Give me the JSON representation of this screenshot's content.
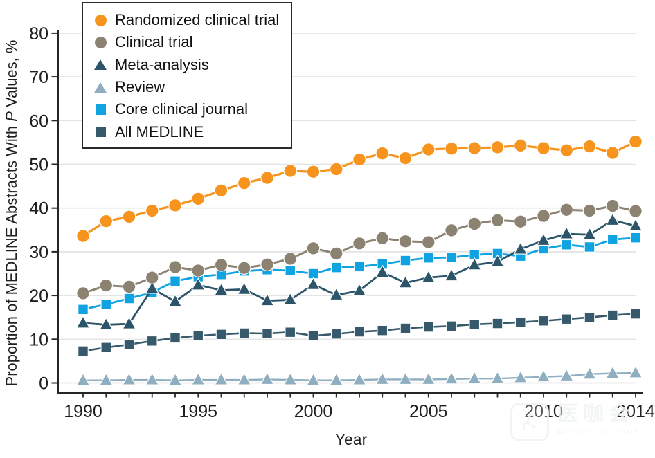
{
  "watermark": {
    "brand": "医咖会",
    "sub": "MEDIECOGROUP.COM"
  },
  "chart_data": {
    "type": "line",
    "title": "",
    "xlabel": "Year",
    "ylabel_prefix": "Proportion of MEDLINE Abstracts With ",
    "ylabel_italic": "P",
    "ylabel_suffix": " Values, %",
    "x": [
      1990,
      1991,
      1992,
      1993,
      1994,
      1995,
      1996,
      1997,
      1998,
      1999,
      2000,
      2001,
      2002,
      2003,
      2004,
      2005,
      2006,
      2007,
      2008,
      2009,
      2010,
      2011,
      2012,
      2013,
      2014
    ],
    "x_tick_labels": [
      "1990",
      "1995",
      "2000",
      "2005",
      "2010",
      "2014"
    ],
    "y_ticks": [
      0,
      10,
      20,
      30,
      40,
      50,
      60,
      70,
      80
    ],
    "ylim": [
      0,
      80
    ],
    "grid": true,
    "legend_position": "top-left",
    "axis_color": "#262626",
    "gridline_color": "#E4E4E4",
    "series": [
      {
        "name": "Randomized clinical trial",
        "marker": "circle",
        "color": "#F7941E",
        "values": [
          33.6,
          37.0,
          38.0,
          39.4,
          40.6,
          42.1,
          44.0,
          45.7,
          46.9,
          48.5,
          48.3,
          48.9,
          51.1,
          52.5,
          51.4,
          53.4,
          53.6,
          53.7,
          53.9,
          54.3,
          53.7,
          53.2,
          54.1,
          52.6,
          55.2
        ]
      },
      {
        "name": "Clinical trial",
        "marker": "circle",
        "color": "#8C8272",
        "values": [
          20.5,
          22.3,
          22.0,
          24.1,
          26.5,
          25.7,
          27.0,
          26.3,
          27.1,
          28.4,
          30.8,
          29.6,
          31.9,
          33.1,
          32.4,
          32.2,
          34.9,
          36.4,
          37.2,
          36.9,
          38.2,
          39.6,
          39.4,
          40.5,
          39.3
        ]
      },
      {
        "name": "Meta-analysis",
        "marker": "triangle",
        "color": "#2C556A",
        "values": [
          13.7,
          13.3,
          13.5,
          21.6,
          18.6,
          22.4,
          21.2,
          21.4,
          18.8,
          19.0,
          22.5,
          20.1,
          21.1,
          25.3,
          22.9,
          24.1,
          24.5,
          27.0,
          27.7,
          30.6,
          32.6,
          34.1,
          33.9,
          37.2,
          35.9
        ]
      },
      {
        "name": "Review",
        "marker": "triangle",
        "color": "#8FAFC0",
        "values": [
          0.6,
          0.6,
          0.7,
          0.7,
          0.6,
          0.7,
          0.7,
          0.7,
          0.8,
          0.7,
          0.6,
          0.6,
          0.7,
          0.8,
          0.8,
          0.8,
          0.9,
          1.0,
          1.0,
          1.2,
          1.4,
          1.6,
          2.0,
          2.2,
          2.3
        ]
      },
      {
        "name": "Core clinical journal",
        "marker": "square",
        "color": "#10A3E2",
        "values": [
          16.8,
          18.0,
          19.3,
          20.7,
          23.3,
          24.3,
          24.8,
          25.6,
          25.9,
          25.7,
          25.0,
          26.4,
          26.6,
          27.2,
          28.0,
          28.6,
          28.7,
          29.3,
          29.6,
          29.0,
          30.7,
          31.6,
          31.1,
          32.8,
          33.2
        ]
      },
      {
        "name": "All MEDLINE",
        "marker": "square",
        "color": "#37596C",
        "values": [
          7.3,
          8.1,
          8.8,
          9.6,
          10.3,
          10.8,
          11.1,
          11.4,
          11.3,
          11.6,
          10.8,
          11.2,
          11.7,
          12.0,
          12.5,
          12.8,
          13.0,
          13.4,
          13.6,
          13.9,
          14.2,
          14.6,
          15.0,
          15.5,
          15.8
        ]
      }
    ]
  }
}
